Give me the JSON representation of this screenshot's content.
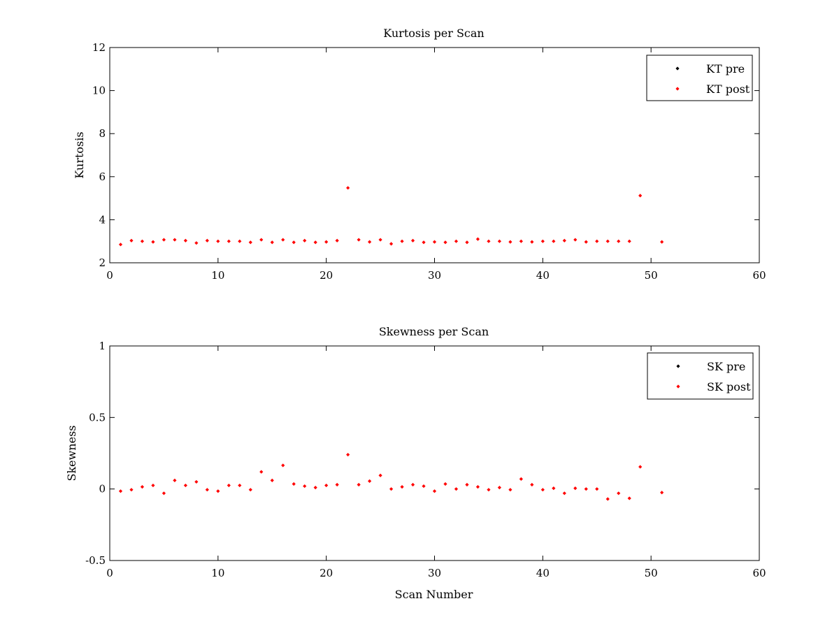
{
  "chart_data": [
    {
      "type": "scatter",
      "title": "Kurtosis per Scan",
      "xlabel": "",
      "ylabel": "Kurtosis",
      "xlim": [
        0,
        60
      ],
      "ylim": [
        2,
        12
      ],
      "xticks": [
        0,
        10,
        20,
        30,
        40,
        50,
        60
      ],
      "yticks": [
        2,
        4,
        6,
        8,
        10,
        12
      ],
      "legend_position": "top-right",
      "series": [
        {
          "name": "KT pre",
          "color": "#000000",
          "x": [],
          "y": []
        },
        {
          "name": "KT post",
          "color": "#ff0000",
          "x": [
            1,
            2,
            3,
            4,
            5,
            6,
            7,
            8,
            9,
            10,
            11,
            12,
            13,
            14,
            15,
            16,
            17,
            18,
            19,
            20,
            21,
            22,
            23,
            24,
            25,
            26,
            27,
            28,
            29,
            30,
            31,
            32,
            33,
            34,
            35,
            36,
            37,
            38,
            39,
            40,
            41,
            42,
            43,
            44,
            45,
            46,
            47,
            48,
            49,
            51
          ],
          "y": [
            2.85,
            3.03,
            3.0,
            2.97,
            3.07,
            3.07,
            3.03,
            2.92,
            3.03,
            3.0,
            3.0,
            3.0,
            2.95,
            3.07,
            2.95,
            3.07,
            2.95,
            3.03,
            2.95,
            2.97,
            3.03,
            5.48,
            3.07,
            2.97,
            3.07,
            2.88,
            3.0,
            3.03,
            2.95,
            2.97,
            2.95,
            3.0,
            2.95,
            3.1,
            3.0,
            3.0,
            2.97,
            3.0,
            2.97,
            3.0,
            3.0,
            3.03,
            3.07,
            2.97,
            3.0,
            3.0,
            3.0,
            3.0,
            5.12,
            2.97
          ]
        }
      ]
    },
    {
      "type": "scatter",
      "title": "Skewness per Scan",
      "xlabel": "Scan Number",
      "ylabel": "Skewness",
      "xlim": [
        0,
        60
      ],
      "ylim": [
        -0.5,
        1
      ],
      "xticks": [
        0,
        10,
        20,
        30,
        40,
        50,
        60
      ],
      "yticks": [
        -0.5,
        0,
        0.5,
        1
      ],
      "legend_position": "top-right",
      "series": [
        {
          "name": "SK pre",
          "color": "#000000",
          "x": [],
          "y": []
        },
        {
          "name": "SK post",
          "color": "#ff0000",
          "x": [
            1,
            2,
            3,
            4,
            5,
            6,
            7,
            8,
            9,
            10,
            11,
            12,
            13,
            14,
            15,
            16,
            17,
            18,
            19,
            20,
            21,
            22,
            23,
            24,
            25,
            26,
            27,
            28,
            29,
            30,
            31,
            32,
            33,
            34,
            35,
            36,
            37,
            38,
            39,
            40,
            41,
            42,
            43,
            44,
            45,
            46,
            47,
            48,
            49,
            51
          ],
          "y": [
            -0.015,
            -0.005,
            0.015,
            0.025,
            -0.03,
            0.06,
            0.025,
            0.05,
            -0.005,
            -0.015,
            0.025,
            0.025,
            -0.005,
            0.12,
            0.06,
            0.165,
            0.035,
            0.02,
            0.01,
            0.025,
            0.03,
            0.24,
            0.03,
            0.055,
            0.095,
            0.0,
            0.015,
            0.03,
            0.02,
            -0.015,
            0.035,
            0.0,
            0.03,
            0.015,
            -0.005,
            0.01,
            -0.005,
            0.07,
            0.03,
            -0.005,
            0.005,
            -0.03,
            0.005,
            0.0,
            0.0,
            -0.07,
            -0.03,
            -0.065,
            0.155,
            -0.025
          ]
        }
      ]
    }
  ]
}
